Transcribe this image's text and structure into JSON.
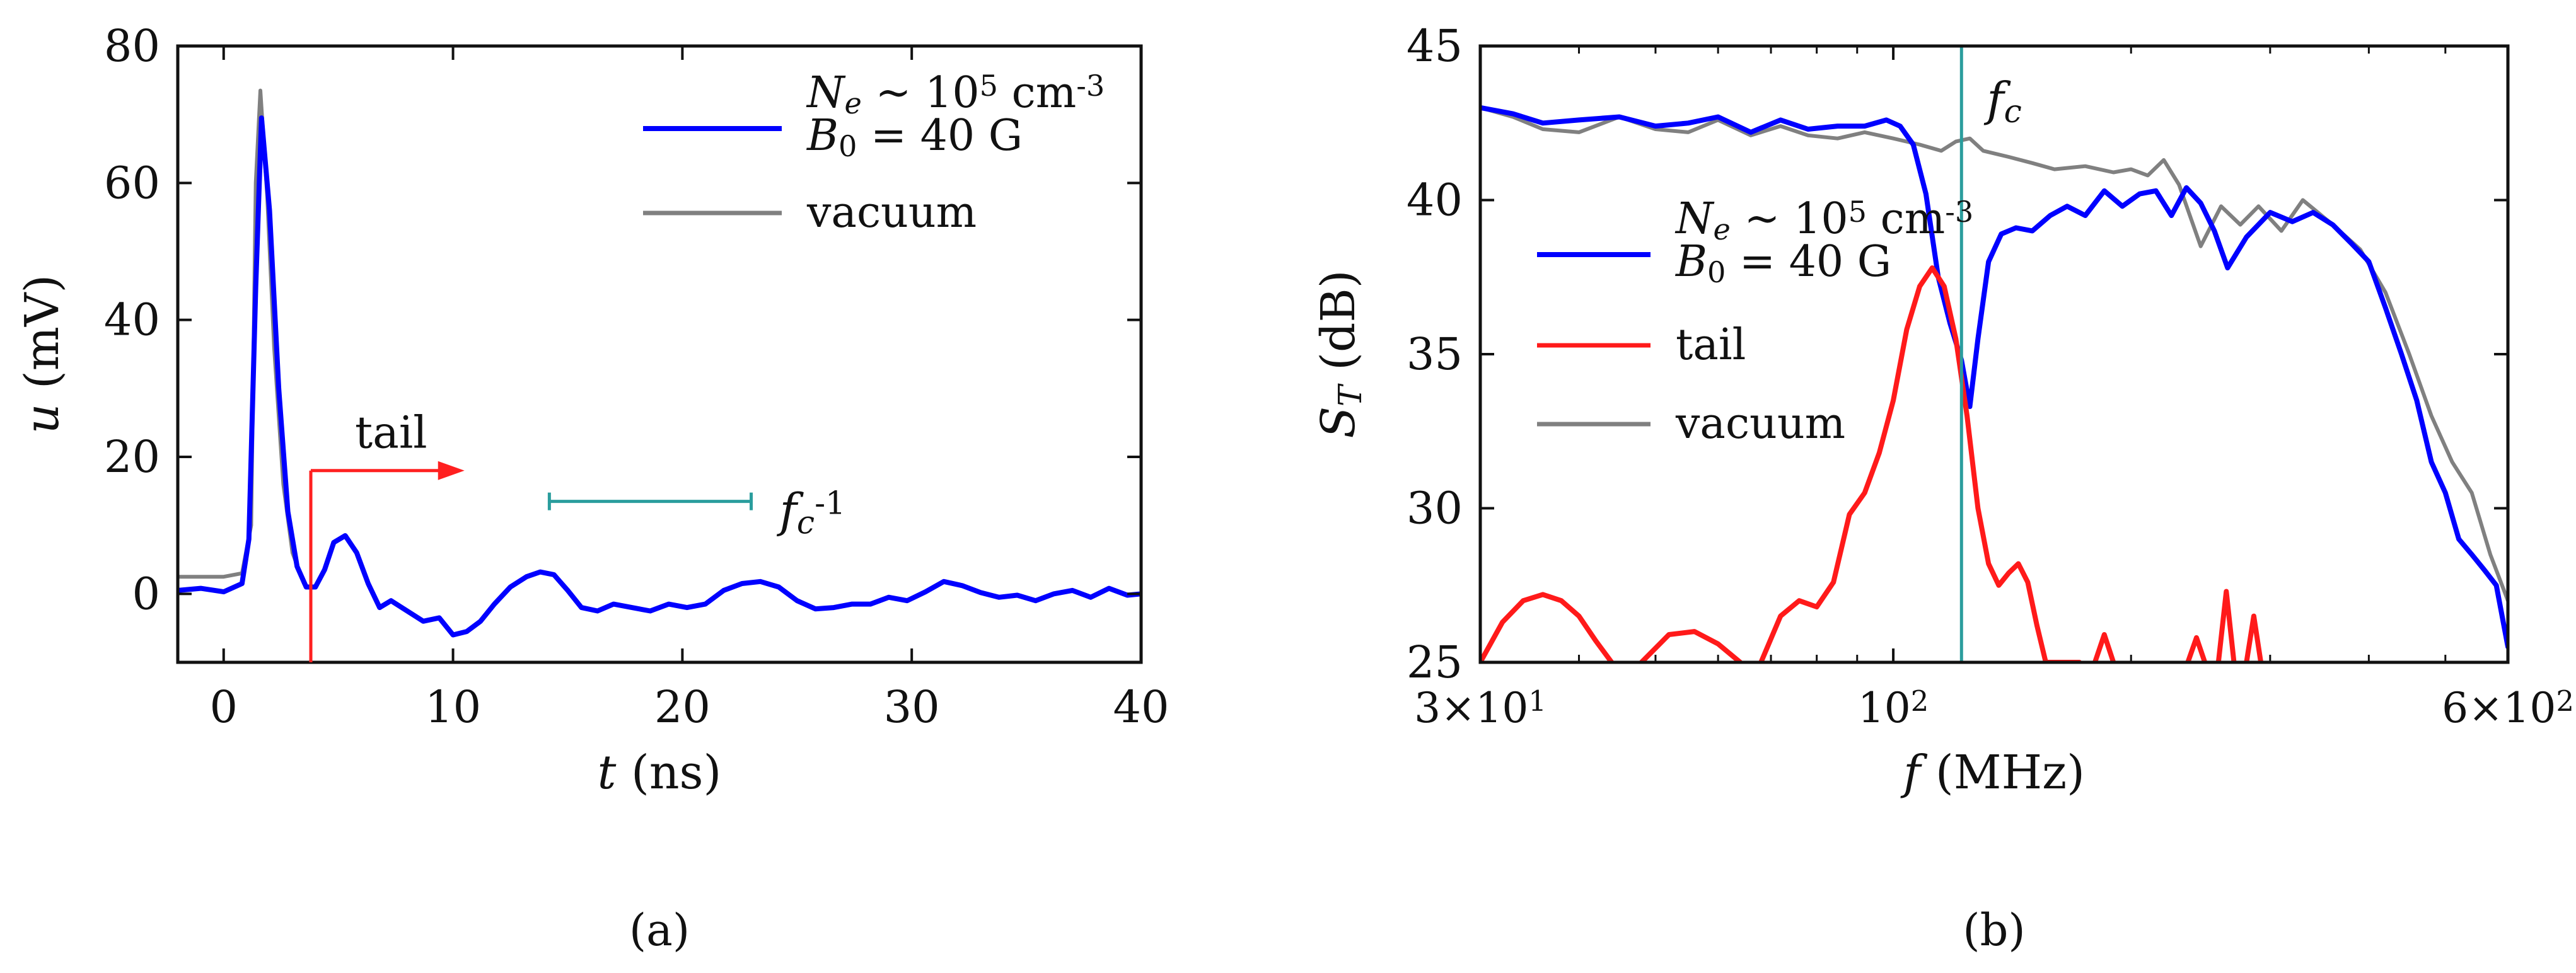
{
  "chart_data": [
    {
      "type": "line",
      "panel_label": "a",
      "xlabel_var": "t",
      "xlabel_unit": "(ns)",
      "ylabel_var": "u",
      "ylabel_unit": "(mV)",
      "xlim": [
        -2,
        40
      ],
      "ylim": [
        -10,
        80
      ],
      "xticks": [
        0,
        10,
        20,
        30,
        40
      ],
      "yticks": [
        0,
        20,
        40,
        60,
        80
      ],
      "xtick_labels": [
        "0",
        "10",
        "20",
        "30",
        "40"
      ],
      "ytick_labels": [
        "0",
        "20",
        "40",
        "60",
        "80"
      ],
      "legend": {
        "position": "top-right",
        "entries": [
          {
            "series": "plasma",
            "line1": {
              "var": "N",
              "sub": "e",
              "rest": " ~ 10",
              "sup": "5",
              "unit": " cm",
              "unitsup": "-3"
            },
            "line2": {
              "var": "B",
              "sub": "0",
              "rest": " = 40 G"
            }
          },
          {
            "series": "vacuum",
            "label": "vacuum"
          }
        ]
      },
      "annotations": {
        "tail": {
          "label": "tail",
          "start_t": 3.8,
          "end_t": 10.5,
          "y": 18
        },
        "period": {
          "var": "f",
          "sub": "c",
          "sup": "-1",
          "start_t": 14.2,
          "end_t": 23.0,
          "y": 13.5
        }
      },
      "series": [
        {
          "name": "vacuum",
          "color": "#808080",
          "x": [
            -2,
            0,
            0.8,
            1.2,
            1.4,
            1.6,
            1.9,
            2.2,
            2.6,
            3.0,
            3.5
          ],
          "y": [
            2.5,
            2.5,
            3,
            10,
            60,
            73.5,
            58,
            36,
            16,
            6,
            1.5
          ]
        },
        {
          "name": "plasma",
          "color": "#0000ff",
          "x": [
            -2,
            -1,
            0,
            0.8,
            1.1,
            1.4,
            1.65,
            2.0,
            2.4,
            2.8,
            3.2,
            3.6,
            4.0,
            4.4,
            4.8,
            5.3,
            5.8,
            6.3,
            6.8,
            7.3,
            8.0,
            8.7,
            9.4,
            10.0,
            10.6,
            11.2,
            11.8,
            12.5,
            13.2,
            13.8,
            14.4,
            15.0,
            15.6,
            16.3,
            17.0,
            17.8,
            18.6,
            19.4,
            20.2,
            21.0,
            21.8,
            22.6,
            23.4,
            24.2,
            25.0,
            25.8,
            26.6,
            27.4,
            28.2,
            29.0,
            29.8,
            30.6,
            31.4,
            32.2,
            33.0,
            33.8,
            34.6,
            35.4,
            36.2,
            37.0,
            37.8,
            38.6,
            39.4,
            40.0
          ],
          "y": [
            0.5,
            0.8,
            0.3,
            1.5,
            8,
            45,
            69.5,
            56,
            30,
            12,
            4,
            1,
            1,
            3.5,
            7.5,
            8.5,
            6,
            1.5,
            -2,
            -1,
            -2.5,
            -4,
            -3.5,
            -6,
            -5.5,
            -4,
            -1.5,
            1,
            2.5,
            3.2,
            2.8,
            0.5,
            -2,
            -2.5,
            -1.5,
            -2,
            -2.5,
            -1.5,
            -2,
            -1.5,
            0.5,
            1.5,
            1.8,
            1,
            -1,
            -2.2,
            -2,
            -1.5,
            -1.5,
            -0.5,
            -1,
            0.3,
            1.8,
            1.2,
            0.2,
            -0.5,
            -0.2,
            -1,
            0,
            0.5,
            -0.5,
            0.8,
            -0.2,
            0
          ]
        }
      ]
    },
    {
      "type": "line",
      "panel_label": "b",
      "xscale": "log",
      "xlabel_var": "f",
      "xlabel_unit": "(MHz)",
      "ylabel_var": "S",
      "ylabel_sub": "T",
      "ylabel_unit": "(dB)",
      "xlim": [
        30,
        600
      ],
      "ylim": [
        25,
        45
      ],
      "xticks": [
        30,
        100,
        600
      ],
      "xtick_labels": [
        {
          "mant": "3×10",
          "exp": "1"
        },
        {
          "mant": "10",
          "exp": "2"
        },
        {
          "mant": "6×10",
          "exp": "2"
        }
      ],
      "yticks": [
        25,
        30,
        35,
        40,
        45
      ],
      "ytick_labels": [
        "25",
        "30",
        "35",
        "40",
        "45"
      ],
      "vline": {
        "x": 122,
        "var": "f",
        "sub": "c",
        "color": "#2a9d9d"
      },
      "legend": {
        "position": "left",
        "entries": [
          {
            "series": "plasma",
            "line1": {
              "var": "N",
              "sub": "e",
              "rest": " ~ 10",
              "sup": "5",
              "unit": " cm",
              "unitsup": "-3"
            },
            "line2": {
              "var": "B",
              "sub": "0",
              "rest": " = 40 G"
            }
          },
          {
            "series": "tail",
            "label": "tail"
          },
          {
            "series": "vacuum",
            "label": "vacuum"
          }
        ]
      },
      "series": [
        {
          "name": "vacuum",
          "color": "#808080",
          "x": [
            30,
            33,
            36,
            40,
            45,
            50,
            55,
            60,
            66,
            72,
            78,
            85,
            92,
            100,
            108,
            115,
            120,
            125,
            130,
            140,
            150,
            160,
            175,
            190,
            200,
            210,
            220,
            230,
            245,
            260,
            275,
            290,
            310,
            330,
            360,
            390,
            420,
            450,
            480,
            510,
            540,
            570,
            600
          ],
          "y": [
            43.0,
            42.7,
            42.3,
            42.2,
            42.7,
            42.3,
            42.2,
            42.6,
            42.1,
            42.4,
            42.1,
            42.0,
            42.2,
            42.0,
            41.8,
            41.6,
            41.9,
            42.0,
            41.6,
            41.4,
            41.2,
            41.0,
            41.1,
            40.9,
            41.0,
            40.8,
            41.3,
            40.5,
            38.5,
            39.8,
            39.2,
            39.8,
            39.0,
            40.0,
            39.2,
            38.4,
            37.0,
            35.0,
            33.0,
            31.5,
            30.5,
            28.5,
            27.0
          ]
        },
        {
          "name": "plasma",
          "color": "#0000ff",
          "x": [
            30,
            33,
            36,
            40,
            45,
            50,
            55,
            60,
            66,
            72,
            78,
            85,
            92,
            98,
            102,
            106,
            110,
            114,
            118,
            122,
            125,
            128,
            132,
            137,
            143,
            150,
            158,
            166,
            175,
            185,
            195,
            205,
            215,
            225,
            235,
            245,
            255,
            265,
            280,
            300,
            320,
            340,
            360,
            380,
            400,
            420,
            440,
            460,
            480,
            500,
            520,
            540,
            560,
            580,
            600
          ],
          "y": [
            43.0,
            42.8,
            42.5,
            42.6,
            42.7,
            42.4,
            42.5,
            42.7,
            42.2,
            42.6,
            42.3,
            42.4,
            42.4,
            42.6,
            42.4,
            41.8,
            40.2,
            37.5,
            36.0,
            34.8,
            33.3,
            35.5,
            38.0,
            38.9,
            39.1,
            39.0,
            39.5,
            39.8,
            39.5,
            40.3,
            39.8,
            40.2,
            40.3,
            39.5,
            40.4,
            39.9,
            39.0,
            37.8,
            38.8,
            39.6,
            39.3,
            39.6,
            39.2,
            38.6,
            38.0,
            36.5,
            35.0,
            33.5,
            31.5,
            30.5,
            29.0,
            28.5,
            28.0,
            27.5,
            25.5
          ]
        },
        {
          "name": "tail",
          "color": "#ff1a1a",
          "segments": [
            {
              "x": [
                30,
                32,
                34,
                36,
                38,
                40,
                42,
                44
              ],
              "y": [
                25.0,
                26.3,
                27.0,
                27.2,
                27.0,
                26.5,
                25.7,
                25.0
              ]
            },
            {
              "x": [
                48,
                52,
                56,
                60,
                64
              ],
              "y": [
                25.0,
                25.9,
                26.0,
                25.6,
                25.0
              ]
            },
            {
              "x": [
                68,
                72,
                76,
                80,
                84,
                88,
                92,
                96,
                100,
                104,
                108,
                112,
                116,
                120,
                124,
                128,
                132,
                136,
                140,
                144,
                148,
                152,
                156,
                160,
                164,
                168,
                172
              ],
              "y": [
                25.0,
                26.5,
                27.0,
                26.8,
                27.6,
                29.8,
                30.5,
                31.8,
                33.5,
                35.8,
                37.2,
                37.8,
                37.2,
                35.5,
                33.0,
                30.0,
                28.2,
                27.5,
                27.9,
                28.2,
                27.6,
                26.2,
                25.0,
                25.0,
                25.0,
                25.0,
                25.0
              ]
            },
            {
              "x": [
                180,
                185,
                190
              ],
              "y": [
                25.0,
                25.9,
                25.0
              ]
            },
            {
              "x": [
                236,
                242,
                248
              ],
              "y": [
                25.0,
                25.8,
                25.0
              ]
            },
            {
              "x": [
                258,
                264,
                270
              ],
              "y": [
                25.0,
                27.3,
                25.0
              ]
            },
            {
              "x": [
                280,
                286,
                292
              ],
              "y": [
                25.0,
                26.5,
                25.0
              ]
            }
          ]
        }
      ]
    }
  ]
}
